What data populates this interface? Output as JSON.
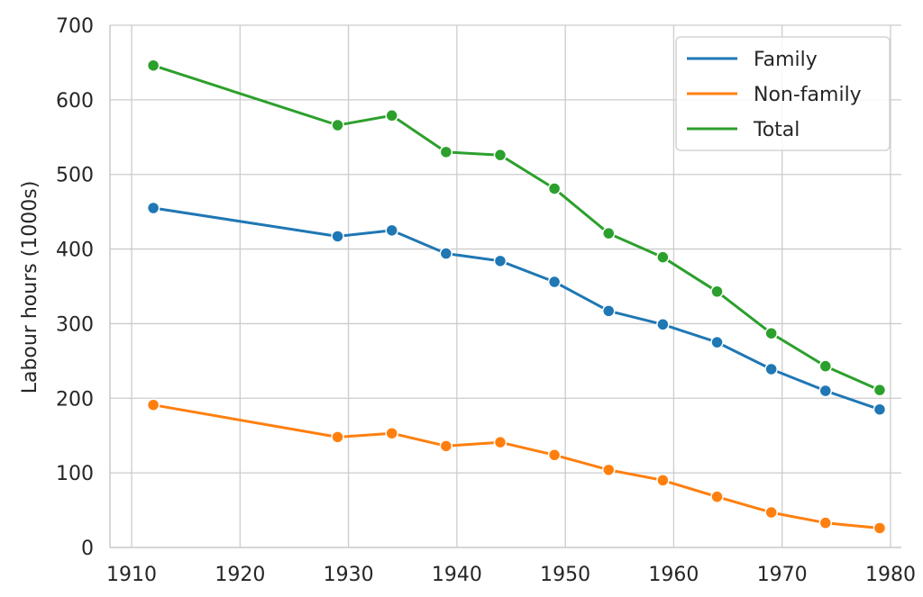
{
  "chart_data": {
    "type": "line",
    "title": "",
    "xlabel": "",
    "ylabel": "Labour hours (1000s)",
    "xlim": [
      1908,
      1981
    ],
    "ylim": [
      0,
      700
    ],
    "x_ticks": [
      1910,
      1920,
      1930,
      1940,
      1950,
      1960,
      1970,
      1980
    ],
    "y_ticks": [
      0,
      100,
      200,
      300,
      400,
      500,
      600,
      700
    ],
    "grid": true,
    "legend_position": "top-right",
    "x": [
      1912,
      1929,
      1934,
      1939,
      1944,
      1949,
      1954,
      1959,
      1964,
      1969,
      1974,
      1979
    ],
    "series": [
      {
        "name": "Family",
        "color": "#1f77b4",
        "values": [
          455,
          417,
          425,
          394,
          384,
          356,
          317,
          299,
          275,
          239,
          210,
          185
        ]
      },
      {
        "name": "Non-family",
        "color": "#ff7f0e",
        "values": [
          191,
          148,
          153,
          136,
          141,
          124,
          104,
          90,
          68,
          47,
          33,
          26
        ]
      },
      {
        "name": "Total",
        "color": "#2ca02c",
        "values": [
          646,
          566,
          579,
          530,
          526,
          481,
          421,
          389,
          343,
          287,
          243,
          211
        ]
      }
    ]
  }
}
